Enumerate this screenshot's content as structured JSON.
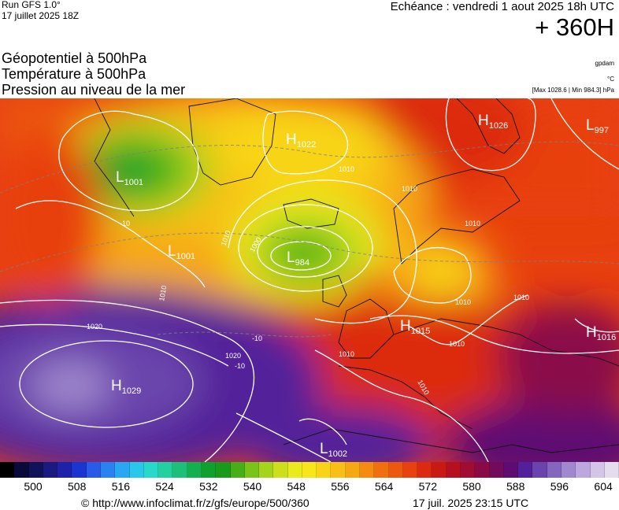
{
  "header": {
    "run_label": "Run GFS 1.0°",
    "run_date": "17 juillet 2025 18Z",
    "echeance": "Echéance : vendredi 1 aout 2025 18h UTC",
    "forecast_hour": "+ 360H"
  },
  "layers": [
    "Géopotentiel à 500hPa",
    "Température à 500hPa",
    "Pression au niveau de la mer"
  ],
  "units": {
    "geopotential": "gpdam",
    "temperature": "°C",
    "pressure_range": "[Max 1028.6 | Min 984.3] hPa"
  },
  "pressure_centers": [
    {
      "type": "H",
      "value": "1026"
    },
    {
      "type": "L",
      "value": "997"
    },
    {
      "type": "H",
      "value": "1022"
    },
    {
      "type": "L",
      "value": "1001"
    },
    {
      "type": "L",
      "value": "1001"
    },
    {
      "type": "L",
      "value": "984"
    },
    {
      "type": "H",
      "value": "1015"
    },
    {
      "type": "H",
      "value": "1016"
    },
    {
      "type": "H",
      "value": "1029"
    },
    {
      "type": "L",
      "value": "1002"
    }
  ],
  "isobar_labels": [
    "1010",
    "1010",
    "1010",
    "1010",
    "1000",
    "1010",
    "1010",
    "1010",
    "1020",
    "1020",
    "1010",
    "1010",
    "1010"
  ],
  "temperature_labels": [
    "-10",
    "-10",
    "-10"
  ],
  "colorbar": {
    "colors": [
      "#000000",
      "#0a0a3a",
      "#12125a",
      "#1a1a80",
      "#1e22a8",
      "#1a36d0",
      "#2a5ae8",
      "#2a82f0",
      "#28a8f0",
      "#2ac8e8",
      "#28d8c8",
      "#22d0a0",
      "#1cc078",
      "#14b050",
      "#10a02e",
      "#1a9a1a",
      "#48ae18",
      "#78c418",
      "#a4d41c",
      "#ccde1c",
      "#eaea1c",
      "#f6e61a",
      "#f8d418",
      "#f8c016",
      "#f6a814",
      "#f48c12",
      "#f07010",
      "#ec580e",
      "#e8400e",
      "#dc2a10",
      "#c81a12",
      "#b41020",
      "#a00c34",
      "#8a0a48",
      "#740a5c",
      "#5e0c72",
      "#52209a",
      "#6a44ac",
      "#8466be",
      "#a088ce",
      "#bca8dc",
      "#d4c4e8",
      "#e6dcf0"
    ],
    "tick_labels": [
      "500",
      "508",
      "516",
      "524",
      "532",
      "540",
      "548",
      "556",
      "564",
      "572",
      "580",
      "588",
      "596",
      "604"
    ]
  },
  "footer": {
    "url": "© http://www.infoclimat.fr/z/gfs/europe/500/360",
    "timestamp": "17 juil. 2025 23:15 UTC"
  }
}
